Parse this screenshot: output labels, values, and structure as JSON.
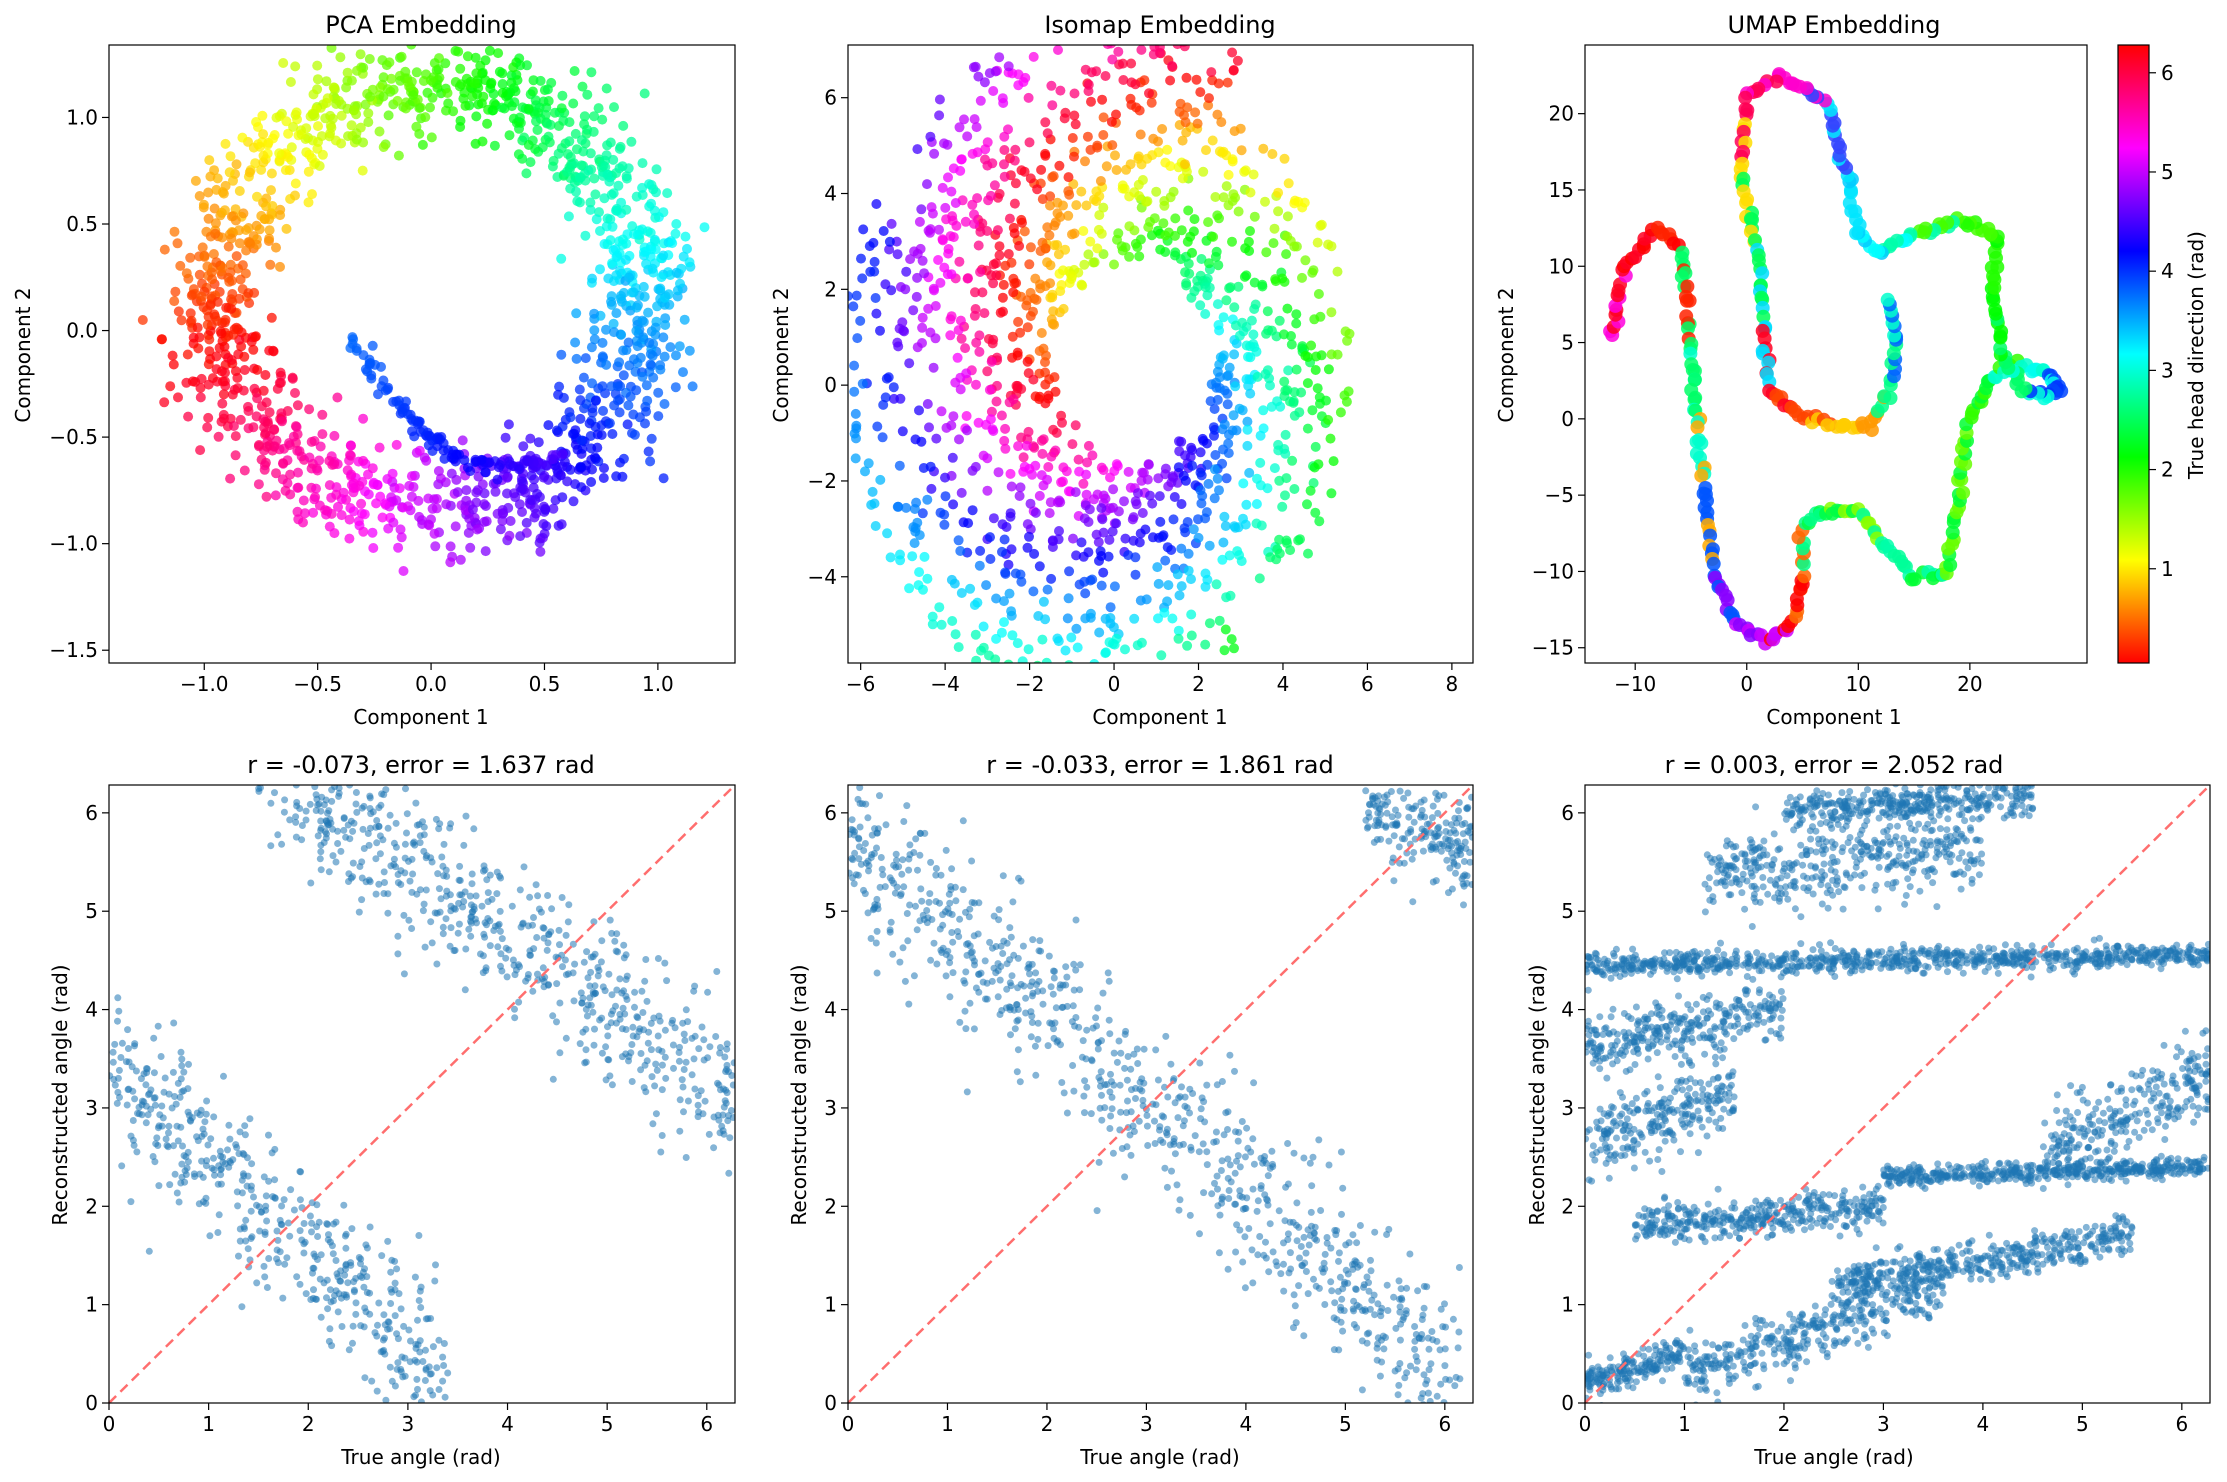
{
  "chart_data": [
    {
      "type": "scatter",
      "title": "PCA Embedding",
      "xlabel": "Component 1",
      "ylabel": "Component 2",
      "xlim": [
        -1.42,
        1.34
      ],
      "ylim": [
        -1.56,
        1.34
      ],
      "xticks": [
        -1.0,
        -0.5,
        0.0,
        0.5,
        1.0
      ],
      "xtick_labels": [
        "−1.0",
        "−0.5",
        "0.0",
        "0.5",
        "1.0"
      ],
      "yticks": [
        -1.5,
        -1.0,
        -0.5,
        0.0,
        0.5,
        1.0
      ],
      "ytick_labels": [
        "−1.5",
        "−1.0",
        "−0.5",
        "0.0",
        "0.5",
        "1.0"
      ],
      "color_by": "true head direction (hsv colormap, 0–2π)",
      "structure": {
        "shape": "noisy ring",
        "center": [
          0.0,
          0.15
        ],
        "radius_x": 0.95,
        "radius_y": 1.0,
        "inner_tail": [
          [
            -0.35,
            -0.05
          ],
          [
            0.55,
            -0.6
          ]
        ]
      },
      "color_stops_by_angle": [
        {
          "angle": 0.0,
          "position": [
            -1.0,
            0.2
          ],
          "color": "#ff0000"
        },
        {
          "angle": 1.0,
          "position": [
            -0.5,
            0.9
          ],
          "color": "#ffcc00"
        },
        {
          "angle": 2.0,
          "position": [
            0.4,
            0.9
          ],
          "color": "#00ff22"
        },
        {
          "angle": 3.0,
          "position": [
            0.9,
            -0.4
          ],
          "color": "#00ffff"
        },
        {
          "angle": 4.0,
          "position": [
            0.2,
            -0.9
          ],
          "color": "#0033ff"
        },
        {
          "angle": 5.0,
          "position": [
            -0.5,
            -1.1
          ],
          "color": "#cc00ff"
        },
        {
          "angle": 6.0,
          "position": [
            -1.1,
            -0.4
          ],
          "color": "#ff0044"
        }
      ]
    },
    {
      "type": "scatter",
      "title": "Isomap Embedding",
      "xlabel": "Component 1",
      "ylabel": "Component 2",
      "xlim": [
        -6.3,
        8.5
      ],
      "ylim": [
        -5.8,
        7.1
      ],
      "xticks": [
        -6,
        -4,
        -2,
        0,
        2,
        4,
        6,
        8
      ],
      "xtick_labels": [
        "−6",
        "−4",
        "−2",
        "0",
        "2",
        "4",
        "6",
        "8"
      ],
      "yticks": [
        -4,
        -2,
        0,
        2,
        4,
        6
      ],
      "ytick_labels": [
        "−4",
        "−2",
        "0",
        "2",
        "4",
        "6"
      ],
      "color_by": "true head direction (hsv colormap, 0–2π)",
      "structure": {
        "shape": "multiple nested arcs",
        "center": [
          0.5,
          0.5
        ]
      }
    },
    {
      "type": "scatter",
      "title": "UMAP Embedding",
      "xlabel": "Component 1",
      "ylabel": "Component 2",
      "xlim": [
        -14.5,
        30.5
      ],
      "ylim": [
        -16.0,
        24.5
      ],
      "xticks": [
        -10,
        0,
        10,
        20
      ],
      "xtick_labels": [
        "−10",
        "0",
        "10",
        "20"
      ],
      "yticks": [
        -15,
        -10,
        -5,
        0,
        5,
        10,
        15,
        20
      ],
      "ytick_labels": [
        "−15",
        "−10",
        "−5",
        "0",
        "5",
        "10",
        "15",
        "20"
      ],
      "color_by": "true head direction (hsv colormap, 0–2π)",
      "structure": {
        "shape": "thin winding curve",
        "path": [
          [
            -12,
            5.3
          ],
          [
            -11,
            10
          ],
          [
            -8,
            12.6
          ],
          [
            -6,
            11
          ],
          [
            -5,
            5
          ],
          [
            -4.5,
            0
          ],
          [
            -4,
            -4
          ],
          [
            -3,
            -10
          ],
          [
            -1,
            -13.5
          ],
          [
            2,
            -14.5
          ],
          [
            4.5,
            -13
          ],
          [
            5,
            -10
          ],
          [
            5,
            -7
          ],
          [
            7,
            -6
          ],
          [
            10,
            -6
          ],
          [
            12,
            -8
          ],
          [
            15,
            -10.3
          ],
          [
            18,
            -10
          ],
          [
            19,
            -5
          ],
          [
            20,
            0
          ],
          [
            22,
            3
          ],
          [
            25,
            3.5
          ],
          [
            27,
            3
          ],
          [
            28,
            2
          ],
          [
            27,
            1.5
          ],
          [
            25,
            2
          ],
          [
            23,
            4
          ],
          [
            22,
            8
          ],
          [
            22.5,
            12
          ],
          [
            19,
            13
          ],
          [
            15,
            12
          ],
          [
            12,
            11
          ],
          [
            10,
            12
          ],
          [
            9,
            16
          ],
          [
            7,
            21
          ],
          [
            3,
            22.5
          ],
          [
            0,
            21
          ],
          [
            -0.5,
            16
          ],
          [
            1,
            11
          ],
          [
            1.5,
            6
          ],
          [
            2,
            2
          ],
          [
            5,
            0
          ],
          [
            8,
            -0.5
          ],
          [
            11,
            -0.5
          ],
          [
            13,
            2
          ],
          [
            13.5,
            5
          ],
          [
            12.5,
            8.2
          ]
        ],
        "colors_along_path": [
          "#ff00dd",
          "#ff0022",
          "#ff0000",
          "#ff2200",
          "#00ff66",
          "#00ffcc",
          "#ffaa00",
          "#0055ff",
          "#8800ff",
          "#cc00ff",
          "#ff0000",
          "#ff6600",
          "#00ff88",
          "#00ff44",
          "#88ff00",
          "#00ff99",
          "#00ffaa",
          "#00ff33",
          "#66ff00",
          "#00ff33",
          "#33ff00",
          "#00ffcc",
          "#00ffee",
          "#0044ff",
          "#0033ff",
          "#00ffdd",
          "#00ff66",
          "#00ff00",
          "#22ff00",
          "#44ff00",
          "#00ffaa",
          "#00ffff",
          "#00ccff",
          "#00e5ff",
          "#3344ff",
          "#ff00cc",
          "#ff0055",
          "#ffdd00",
          "#00ff55",
          "#00ddff",
          "#ff0022",
          "#ff4400",
          "#ffcc00",
          "#ff9900",
          "#00ff88",
          "#0066ff",
          "#00ffcc",
          "#00ff44"
        ]
      }
    },
    {
      "type": "scatter",
      "title": "r = -0.073, error = 1.637 rad",
      "xlabel": "True angle (rad)",
      "ylabel": "Reconstructed angle (rad)",
      "xlim": [
        0,
        6.2832
      ],
      "ylim": [
        0,
        6.2832
      ],
      "xticks": [
        0,
        1,
        2,
        3,
        4,
        5,
        6
      ],
      "xtick_labels": [
        "0",
        "1",
        "2",
        "3",
        "4",
        "5",
        "6"
      ],
      "yticks": [
        0,
        1,
        2,
        3,
        4,
        5,
        6
      ],
      "ytick_labels": [
        "0",
        "1",
        "2",
        "3",
        "4",
        "5",
        "6"
      ],
      "marker_color": "#1f77b4",
      "reference_line": {
        "x": [
          0,
          6.2832
        ],
        "y": [
          0,
          6.2832
        ],
        "style": "dashed",
        "color": "#ff6e6e"
      },
      "bands": [
        {
          "x_range": [
            0,
            3.4
          ],
          "y_center": [
            3.4,
            0.2
          ],
          "spread": 0.4
        },
        {
          "x_range": [
            1.5,
            6.28
          ],
          "y_center": [
            6.6,
            3.1
          ],
          "spread": 0.42
        }
      ]
    },
    {
      "type": "scatter",
      "title": "r = -0.033, error = 1.861 rad",
      "xlabel": "True angle (rad)",
      "ylabel": "Reconstructed angle (rad)",
      "xlim": [
        0,
        6.2832
      ],
      "ylim": [
        0,
        6.2832
      ],
      "xticks": [
        0,
        1,
        2,
        3,
        4,
        5,
        6
      ],
      "xtick_labels": [
        "0",
        "1",
        "2",
        "3",
        "4",
        "5",
        "6"
      ],
      "yticks": [
        0,
        1,
        2,
        3,
        4,
        5,
        6
      ],
      "ytick_labels": [
        "0",
        "1",
        "2",
        "3",
        "4",
        "5",
        "6"
      ],
      "marker_color": "#1f77b4",
      "reference_line": {
        "x": [
          0,
          6.2832
        ],
        "y": [
          0,
          6.2832
        ],
        "style": "dashed",
        "color": "#ff6e6e"
      },
      "bands": [
        {
          "x_range": [
            0,
            6.2
          ],
          "y_center": [
            5.8,
            0.1
          ],
          "spread": 0.45
        },
        {
          "x_range": [
            5.2,
            6.28
          ],
          "y_center": [
            6.0,
            5.7
          ],
          "spread": 0.25
        }
      ]
    },
    {
      "type": "scatter",
      "title": "r = 0.003, error = 2.052 rad",
      "xlabel": "True angle (rad)",
      "ylabel": "Reconstructed angle (rad)",
      "xlim": [
        0,
        6.2832
      ],
      "ylim": [
        0,
        6.2832
      ],
      "xticks": [
        0,
        1,
        2,
        3,
        4,
        5,
        6
      ],
      "xtick_labels": [
        "0",
        "1",
        "2",
        "3",
        "4",
        "5",
        "6"
      ],
      "yticks": [
        0,
        1,
        2,
        3,
        4,
        5,
        6
      ],
      "ytick_labels": [
        "0",
        "1",
        "2",
        "3",
        "4",
        "5",
        "6"
      ],
      "marker_color": "#1f77b4",
      "reference_line": {
        "x": [
          0,
          6.2832
        ],
        "y": [
          0,
          6.2832
        ],
        "style": "dashed",
        "color": "#ff6e6e"
      },
      "bands": [
        {
          "x_range": [
            0.0,
            1.0
          ],
          "y_center": [
            0.2,
            0.5
          ],
          "spread": 0.08
        },
        {
          "x_range": [
            1.0,
            3.6
          ],
          "y_center": [
            0.3,
            1.2
          ],
          "spread": 0.15
        },
        {
          "x_range": [
            2.5,
            5.5
          ],
          "y_center": [
            1.2,
            1.7
          ],
          "spread": 0.1
        },
        {
          "x_range": [
            0.5,
            3.0
          ],
          "y_center": [
            1.8,
            2.0
          ],
          "spread": 0.1
        },
        {
          "x_range": [
            3.0,
            6.28
          ],
          "y_center": [
            2.3,
            2.4
          ],
          "spread": 0.05
        },
        {
          "x_range": [
            0.0,
            1.5
          ],
          "y_center": [
            2.6,
            3.2
          ],
          "spread": 0.2
        },
        {
          "x_range": [
            4.6,
            6.28
          ],
          "y_center": [
            2.6,
            3.3
          ],
          "spread": 0.2
        },
        {
          "x_range": [
            0.0,
            2.0
          ],
          "y_center": [
            3.6,
            4.0
          ],
          "spread": 0.15
        },
        {
          "x_range": [
            0.0,
            6.28
          ],
          "y_center": [
            4.45,
            4.55
          ],
          "spread": 0.06
        },
        {
          "x_range": [
            1.2,
            4.0
          ],
          "y_center": [
            5.3,
            5.7
          ],
          "spread": 0.2
        },
        {
          "x_range": [
            2.0,
            4.5
          ],
          "y_center": [
            6.0,
            6.2
          ],
          "spread": 0.1
        }
      ]
    }
  ],
  "colorbar": {
    "label": "True head direction (rad)",
    "colormap": [
      "#ff0000",
      "#ffff00",
      "#00ff00",
      "#00ffff",
      "#0000ff",
      "#ff00ff",
      "#ff0000"
    ],
    "range": [
      0.05,
      6.28
    ],
    "ticks": [
      1,
      2,
      3,
      4,
      5,
      6
    ],
    "tick_labels": [
      "1",
      "2",
      "3",
      "4",
      "5",
      "6"
    ]
  }
}
